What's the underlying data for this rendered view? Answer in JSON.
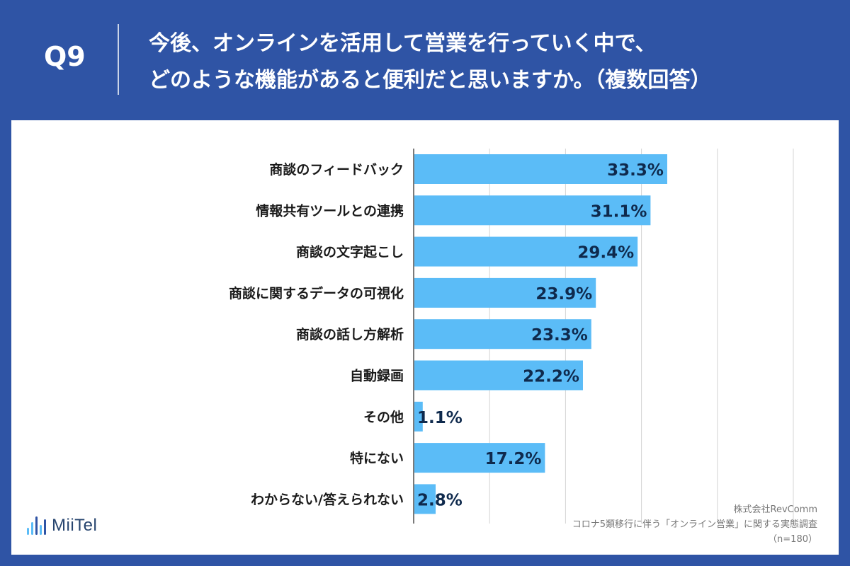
{
  "header": {
    "question_label": "Q9",
    "title_line1": "今後、オンラインを活用して営業を行っていく中で、",
    "title_line2": "どのような機能があると便利だと思いますか。（複数回答）"
  },
  "logo": {
    "name": "MiiTel",
    "icon": "sound-wave-icon"
  },
  "source": {
    "company": "株式会社RevComm",
    "survey": "コロナ5類移行に伴う「オンライン営業」に関する実態調査",
    "sample": "（n=180）"
  },
  "colors": {
    "background": "#2f54a5",
    "bar": "#5bbcf7",
    "value_text": "#0f2a4d"
  },
  "chart_data": {
    "type": "bar",
    "orientation": "horizontal",
    "categories": [
      "商談のフィードバック",
      "情報共有ツールとの連携",
      "商談の文字起こし",
      "商談に関するデータの可視化",
      "商談の話し方解析",
      "自動録画",
      "その他",
      "特にない",
      "わからない/答えられない"
    ],
    "values": [
      33.3,
      31.1,
      29.4,
      23.9,
      23.3,
      22.2,
      1.1,
      17.2,
      2.8
    ],
    "value_labels": [
      "33.3%",
      "31.1%",
      "29.4%",
      "23.9%",
      "23.3%",
      "22.2%",
      "1.1%",
      "17.2%",
      "2.8%"
    ],
    "xlim": [
      0,
      50
    ],
    "grid": true
  }
}
